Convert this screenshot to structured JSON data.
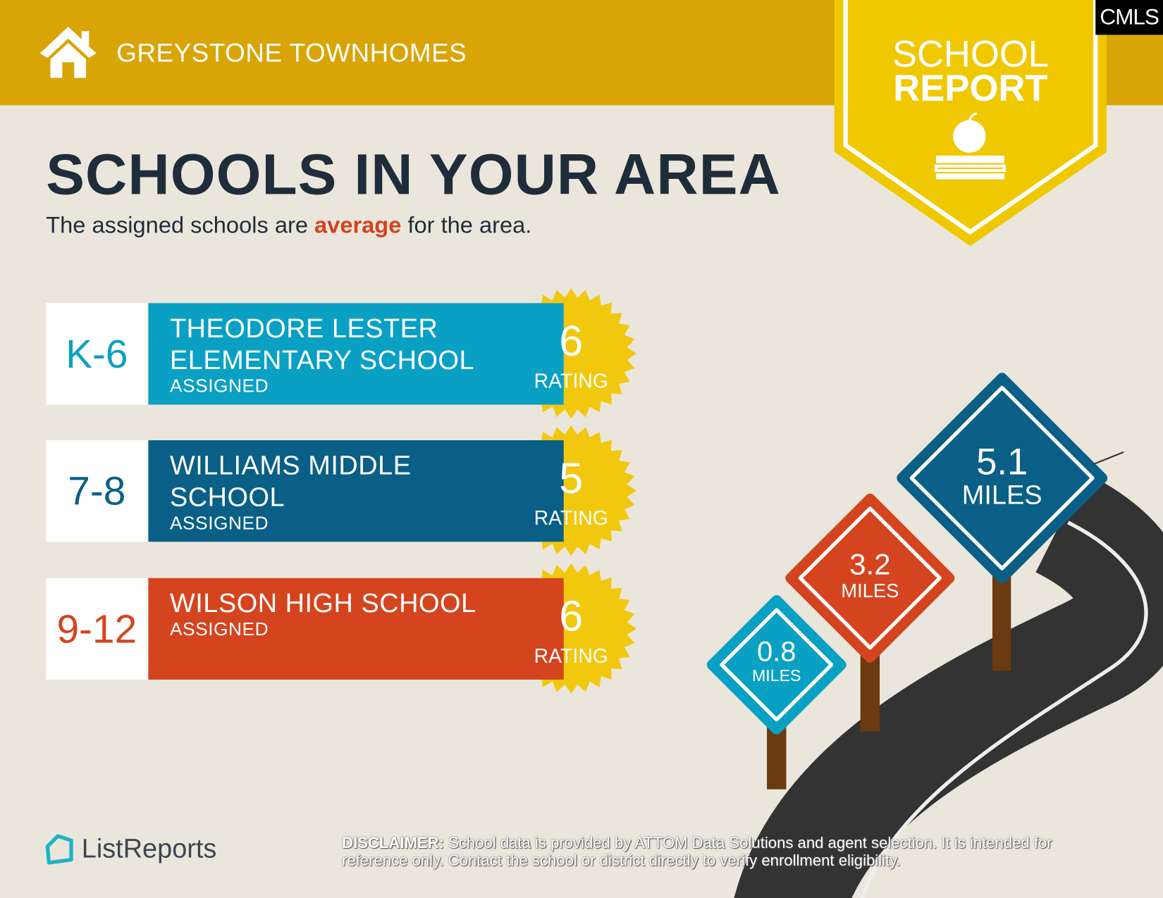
{
  "header": {
    "title": "GREYSTONE TOWNHOMES",
    "icon": "house-icon",
    "color": "#d9a406"
  },
  "badge": {
    "line1": "SCHOOL",
    "line2": "REPORT",
    "icon": "apple-on-book-icon",
    "color": "#f0c800"
  },
  "mls_logo": "CMLS",
  "heading": "SCHOOLS IN YOUR AREA",
  "subtitle": {
    "before": "The assigned schools are ",
    "highlight": "average",
    "after": " for the area."
  },
  "schools": [
    {
      "grades": "K-6",
      "line1": "THEODORE LESTER",
      "line2": "ELEMENTARY SCHOOL",
      "status": "ASSIGNED",
      "rating": "6",
      "rating_label": "RATING",
      "color": "#0aa0c4",
      "distance": "0.8",
      "distance_unit": "MILES"
    },
    {
      "grades": "7-8",
      "line1": "WILLIAMS MIDDLE",
      "line2": "SCHOOL",
      "status": "ASSIGNED",
      "rating": "5",
      "rating_label": "RATING",
      "color": "#0a5f86",
      "distance": "5.1",
      "distance_unit": "MILES"
    },
    {
      "grades": "9-12",
      "line1": "WILSON HIGH SCHOOL",
      "line2": "",
      "status": "ASSIGNED",
      "rating": "6",
      "rating_label": "RATING",
      "color": "#d4441f",
      "distance": "3.2",
      "distance_unit": "MILES"
    }
  ],
  "footer": {
    "brand": "ListReports",
    "disclaimer_label": "DISCLAIMER:",
    "disclaimer_text": " School data is provided by ATTOM Data Solutions and agent selection. It is intended for reference only. Contact the school or district directly to verify enrollment eligibility."
  }
}
